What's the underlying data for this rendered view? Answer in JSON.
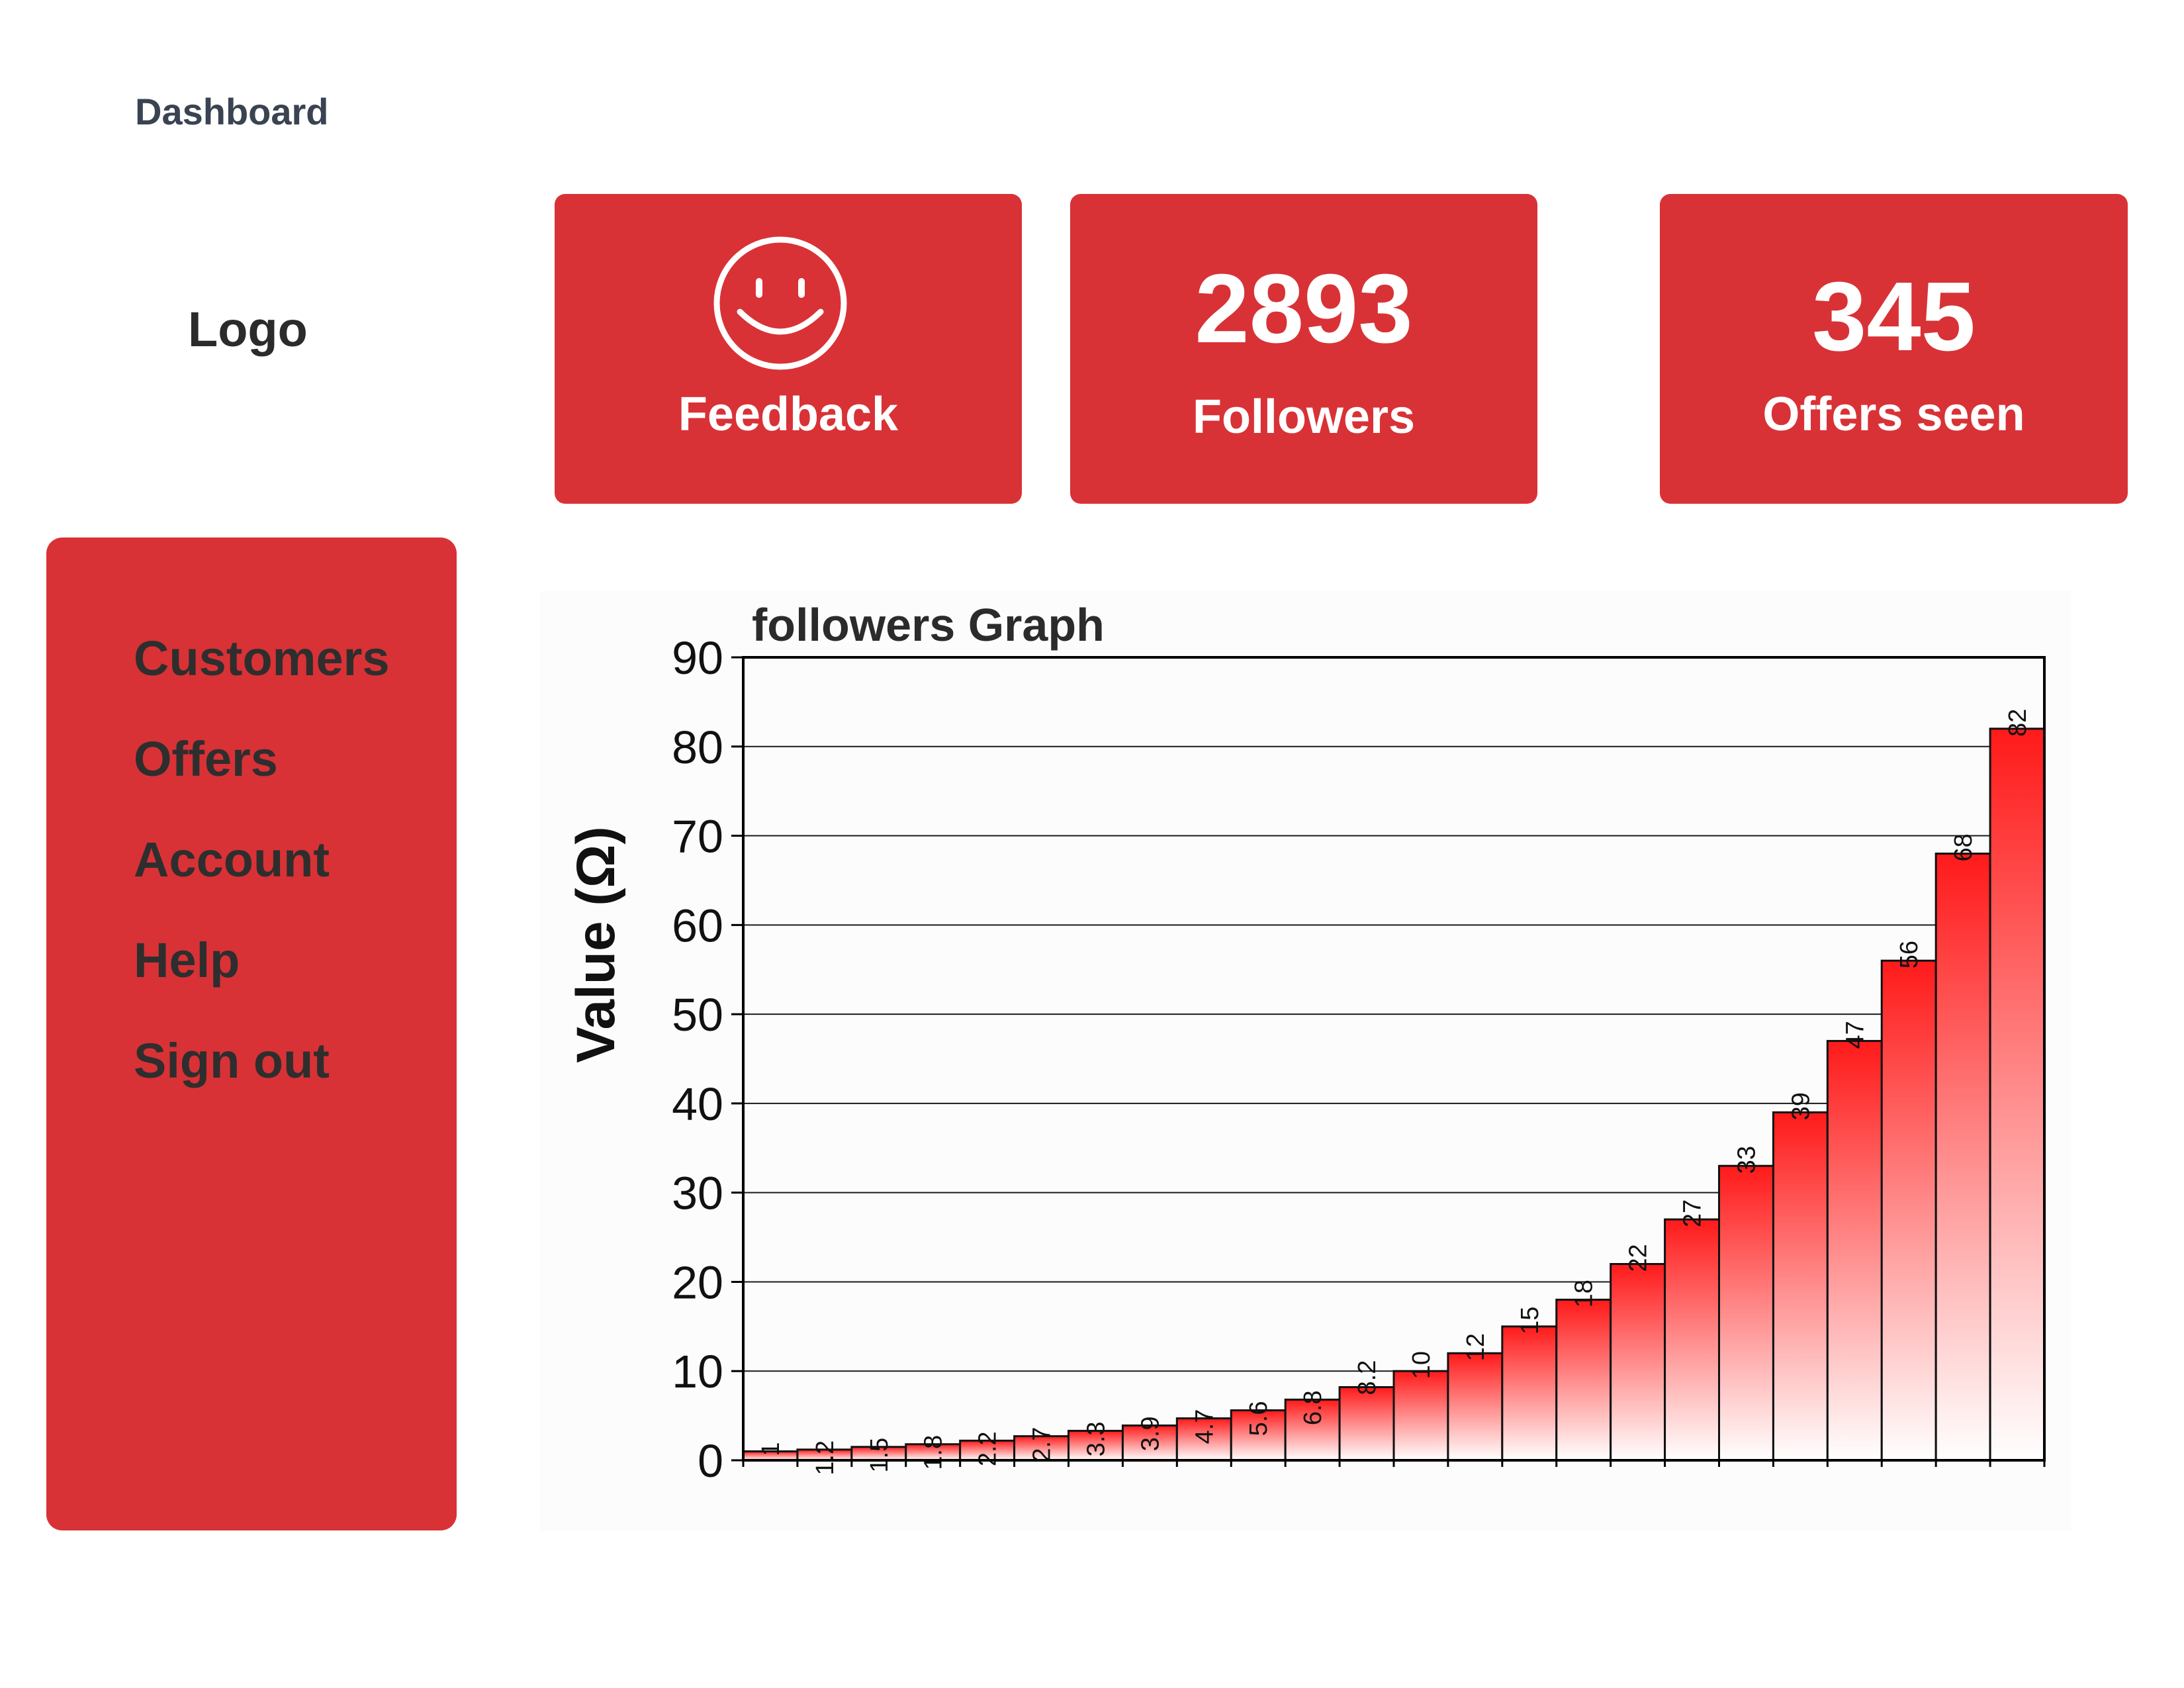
{
  "header": {
    "title": "Dashboard",
    "logo": "Logo"
  },
  "cards": {
    "feedback": {
      "icon": "smiley-face-icon",
      "label": "Feedback"
    },
    "followers": {
      "value": "2893",
      "label": "Followers"
    },
    "offers": {
      "value": "345",
      "label": "Offers seen"
    }
  },
  "sidebar": {
    "items": [
      {
        "label": "Customers"
      },
      {
        "label": "Offers"
      },
      {
        "label": "Account"
      },
      {
        "label": "Help"
      },
      {
        "label": "Sign out"
      }
    ]
  },
  "colors": {
    "accent": "#d83236",
    "bar_top": "#ff1a1a",
    "bar_bottom": "#ffffff",
    "text_dark": "#2b2b2b"
  },
  "chart_data": {
    "type": "bar",
    "title": "followers Graph",
    "xlabel": "",
    "ylabel": "Value (Ω)",
    "ylim": [
      0,
      90
    ],
    "yticks": [
      0,
      10,
      20,
      30,
      40,
      50,
      60,
      70,
      80,
      90
    ],
    "grid": true,
    "values": [
      1,
      1.2,
      1.5,
      1.8,
      2.2,
      2.7,
      3.3,
      3.9,
      4.7,
      5.6,
      6.8,
      8.2,
      10,
      12,
      15,
      18,
      22,
      27,
      33,
      39,
      47,
      56,
      68,
      82
    ]
  }
}
